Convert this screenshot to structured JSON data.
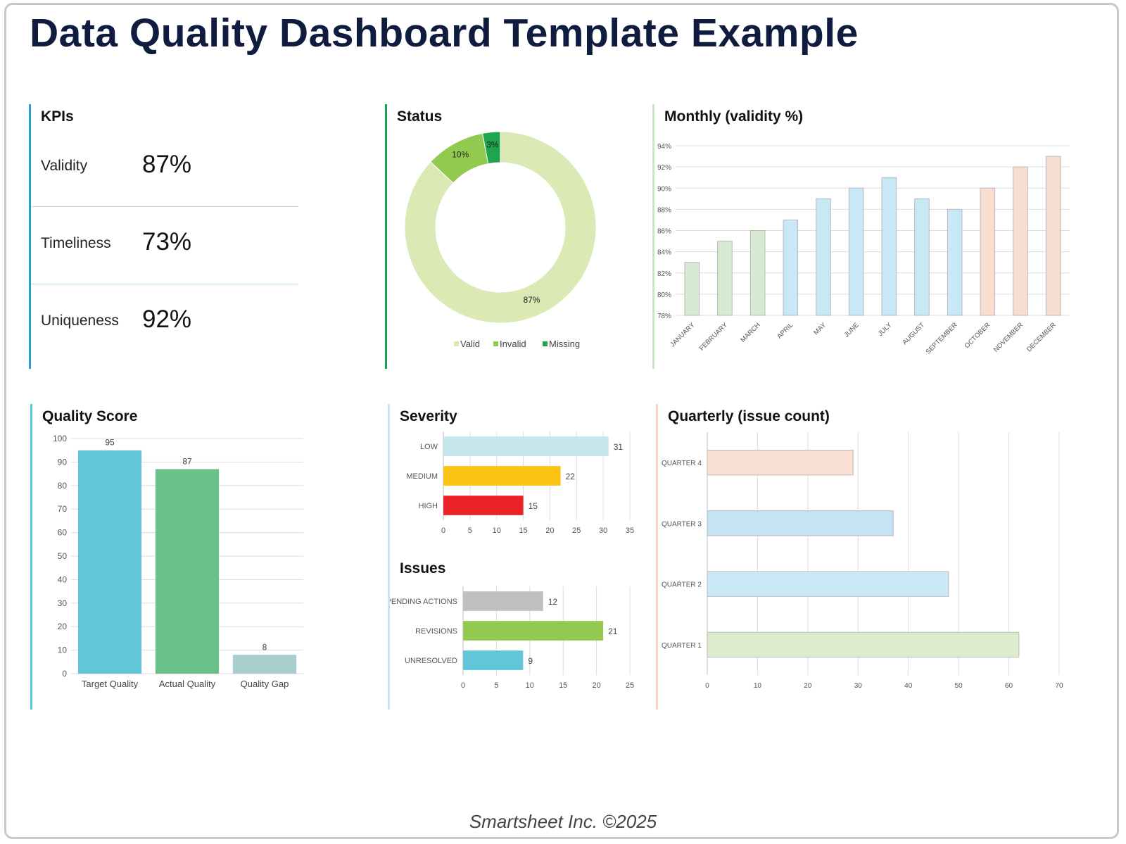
{
  "title": "Data Quality Dashboard Template Example",
  "footer": "Smartsheet Inc. ©2025",
  "kpis": {
    "title": "KPIs",
    "items": [
      {
        "label": "Validity",
        "value": "87%"
      },
      {
        "label": "Timeliness",
        "value": "73%"
      },
      {
        "label": "Uniqueness",
        "value": "92%"
      }
    ]
  },
  "chart_data": [
    {
      "id": "status",
      "type": "pie",
      "title": "Status",
      "categories": [
        "Valid",
        "Invalid",
        "Missing"
      ],
      "values": [
        87,
        10,
        3
      ],
      "labels": [
        "87%",
        "10%",
        "3%"
      ],
      "colors": [
        "#dbe9b4",
        "#92c94f",
        "#1ea54e"
      ],
      "legend": "bottom"
    },
    {
      "id": "monthly",
      "type": "bar",
      "title": "Monthly (validity %)",
      "categories": [
        "JANUARY",
        "FEBRUARY",
        "MARCH",
        "APRIL",
        "MAY",
        "JUNE",
        "JULY",
        "AUGUST",
        "SEPTEMBER",
        "OCTOBER",
        "NOVEMBER",
        "DECEMBER"
      ],
      "values": [
        83,
        85,
        86,
        87,
        89,
        90,
        91,
        89,
        88,
        90,
        92,
        93
      ],
      "colors": [
        "#d6ebd1",
        "#d6ebd1",
        "#d6ebd1",
        "#c8e8f6",
        "#c8e8f6",
        "#c8e8f6",
        "#c8e8f6",
        "#c8e8f6",
        "#c8e8f6",
        "#f8ddd1",
        "#f8ddd1",
        "#f8ddd1"
      ],
      "yticks": [
        "78%",
        "80%",
        "82%",
        "84%",
        "86%",
        "88%",
        "90%",
        "92%",
        "94%"
      ],
      "ylim": [
        78,
        94
      ],
      "grid": true
    },
    {
      "id": "quality",
      "type": "bar",
      "title": "Quality Score",
      "categories": [
        "Target Quality",
        "Actual Quality",
        "Quality Gap"
      ],
      "values": [
        95,
        87,
        8
      ],
      "colors": [
        "#62c6da",
        "#69c189",
        "#a8cfcc"
      ],
      "yticks": [
        "0",
        "10",
        "20",
        "30",
        "40",
        "50",
        "60",
        "70",
        "80",
        "90",
        "100"
      ],
      "ylim": [
        0,
        100
      ],
      "grid": true
    },
    {
      "id": "severity",
      "type": "bar",
      "orientation": "horizontal",
      "title": "Severity",
      "categories": [
        "LOW",
        "MEDIUM",
        "HIGH"
      ],
      "values": [
        31,
        22,
        15
      ],
      "colors": [
        "#c5e6ec",
        "#fbc313",
        "#eb2227"
      ],
      "xticks": [
        "0",
        "5",
        "10",
        "15",
        "20",
        "25",
        "30",
        "35"
      ],
      "xlim": [
        0,
        35
      ],
      "grid": true
    },
    {
      "id": "issues",
      "type": "bar",
      "orientation": "horizontal",
      "title": "Issues",
      "categories": [
        "PENDING ACTIONS",
        "REVISIONS",
        "UNRESOLVED"
      ],
      "values": [
        12,
        21,
        9
      ],
      "colors": [
        "#bfbfbf",
        "#92c94f",
        "#62c6da"
      ],
      "xticks": [
        "0",
        "5",
        "10",
        "15",
        "20",
        "25"
      ],
      "xlim": [
        0,
        25
      ],
      "grid": true
    },
    {
      "id": "quarterly",
      "type": "bar",
      "orientation": "horizontal",
      "title": "Quarterly (issue count)",
      "categories": [
        "QUARTER 4",
        "QUARTER 3",
        "QUARTER 2",
        "QUARTER 1"
      ],
      "values": [
        29,
        37,
        48,
        62
      ],
      "colors": [
        "#f9e0d4",
        "#c4e3f5",
        "#cbe9f7",
        "#dcedcf"
      ],
      "xticks": [
        "0",
        "10",
        "20",
        "30",
        "40",
        "50",
        "60",
        "70"
      ],
      "xlim": [
        0,
        70
      ],
      "grid": true
    }
  ]
}
